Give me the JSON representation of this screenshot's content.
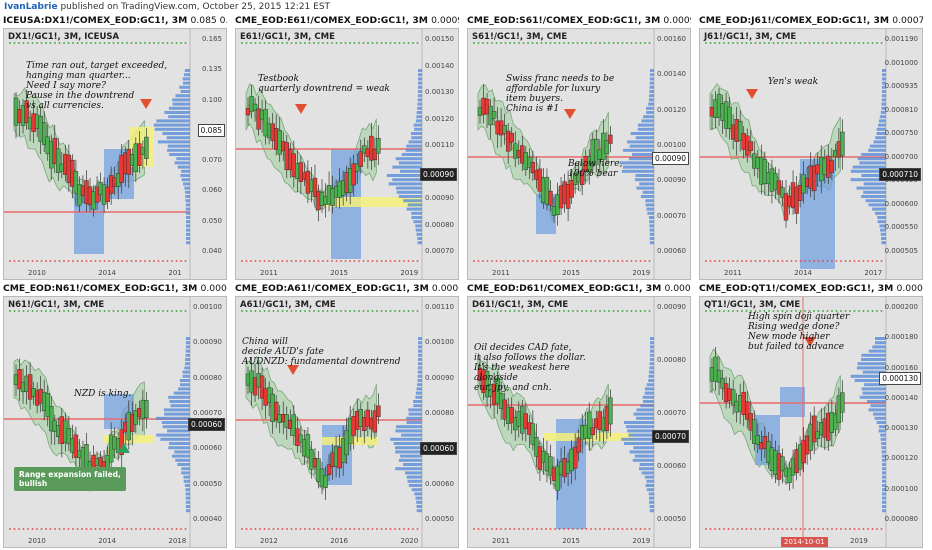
{
  "header": {
    "author": "IvanLabrie",
    "published": "published on TradingView.com, October 25, 2015 12:21 EST"
  },
  "colors": {
    "bull": "#4caf50",
    "bear": "#e53935",
    "band": "#8fc98f",
    "blue_box": "#6e9ee0",
    "yellow_box": "#f5f07a",
    "hline": "#e86a6a",
    "volume": "#4f86d8"
  },
  "panels": [
    {
      "title": "ICEUSA:DX1!/COMEX_EOD:GC1!, 3M",
      "value": "0.085 0.00",
      "inner_title": "DX1!/GC1!, 3M, ICEUSA",
      "notes": [
        "Time ran out, target exceeded,\nhanging man quarter...\nNeed I say more?\nPause in the downtrend\nvs all currencies."
      ],
      "yticks": [
        "0.165",
        "0.135",
        "0.100",
        "0.085",
        "0.070",
        "0.060",
        "0.050",
        "0.040"
      ],
      "xticks": [
        "2010",
        "2014",
        "201"
      ],
      "price_tag": "0.085",
      "price_tag_style": "light"
    },
    {
      "title": "CME_EOD:E61!/COMEX_EOD:GC1!, 3M",
      "value": "0.0009",
      "inner_title": "E61!/GC1!, 3M, CME",
      "notes": [
        "Testbook\nquarterly downtrend = weak"
      ],
      "yticks": [
        "0.00150",
        "0.00140",
        "0.00130",
        "0.00120",
        "0.00110",
        "0.00100",
        "0.00090",
        "0.00080",
        "0.00070"
      ],
      "xticks": [
        "2011",
        "2015",
        "2019"
      ],
      "price_tag": "0.00090",
      "price_tag_style": "dark"
    },
    {
      "title": "CME_EOD:S61!/COMEX_EOD:GC1!, 3M",
      "value": "0.0009",
      "inner_title": "S61!/GC1!, 3M, CME",
      "notes": [
        "Swiss franc needs to be\naffordable for luxury\nitem buyers.\nChina is #1",
        "Below here,\n100% bear"
      ],
      "yticks": [
        "0.00160",
        "0.00140",
        "0.00120",
        "0.00100",
        "0.00090",
        "0.00070",
        "0.00060"
      ],
      "xticks": [
        "2011",
        "2015",
        "2019"
      ],
      "price_tag": "0.00090",
      "price_tag_style": "light"
    },
    {
      "title": "CME_EOD:J61!/COMEX_EOD:GC1!, 3M",
      "value": "0.00071",
      "inner_title": "J61!/GC1!, 3M, CME",
      "notes": [
        "Yen's weak"
      ],
      "yticks": [
        "0.001190",
        "0.001000",
        "0.000935",
        "0.000810",
        "0.000750",
        "0.000700",
        "0.000650",
        "0.000600",
        "0.000550",
        "0.000505"
      ],
      "xticks": [
        "2011",
        "2014",
        "2017"
      ],
      "price_tag": "0.000710",
      "price_tag_style": "dark"
    },
    {
      "title": "CME_EOD:N61!/COMEX_EOD:GC1!, 3M",
      "value": "0.0006",
      "inner_title": "N61!/GC1!, 3M, CME",
      "notes": [
        "NZD is king."
      ],
      "green_box": "Range expansion failed,\nbullish",
      "yticks": [
        "0.00100",
        "0.00090",
        "0.00080",
        "0.00070",
        "0.00060",
        "0.00050",
        "0.00040"
      ],
      "xticks": [
        "2010",
        "2014",
        "2018"
      ],
      "price_tag": "0.00060",
      "price_tag_style": "dark"
    },
    {
      "title": "CME_EOD:A61!/COMEX_EOD:GC1!, 3M",
      "value": "0.0006",
      "inner_title": "A61!/GC1!, 3M, CME",
      "notes": [
        "China will\ndecide AUD's fate\nAUDNZD: fundamental downtrend"
      ],
      "yticks": [
        "0.00110",
        "0.00100",
        "0.00090",
        "0.00080",
        "0.00070",
        "0.00060",
        "0.00050"
      ],
      "xticks": [
        "2012",
        "2016",
        "2020"
      ],
      "price_tag": "0.00060",
      "price_tag_style": "dark"
    },
    {
      "title": "CME_EOD:D61!/COMEX_EOD:GC1!, 3M",
      "value": "0.0007",
      "inner_title": "D61!/GC1!, 3M, CME",
      "notes": [
        "Oil decides CAD fate,\nit also follows the dollar.\nIt's the weakest here\nalongside\neur, jpy, and cnh."
      ],
      "yticks": [
        "0.00090",
        "0.00080",
        "0.00070",
        "0.00060",
        "0.00050"
      ],
      "xticks": [
        "2011",
        "2015",
        "2019"
      ],
      "price_tag": "0.00070",
      "price_tag_style": "dark"
    },
    {
      "title": "CME_EOD:QT1!/COMEX_EOD:GC1!, 3M",
      "value": "0.0001",
      "inner_title": "QT1!/GC1!, 3M, CME",
      "notes": [
        "High spin doji quarter\nRising wedge done?\nNew mode higher\nbut failed to advance"
      ],
      "yticks": [
        "0.000200",
        "0.000180",
        "0.000160",
        "0.000140",
        "0.000130",
        "0.000120",
        "0.000100",
        "0.000080"
      ],
      "xticks": [
        "2014-10-01",
        "2019"
      ],
      "price_tag": "0.000130",
      "price_tag_style": "light",
      "date_tag": "2014-10-01"
    }
  ]
}
